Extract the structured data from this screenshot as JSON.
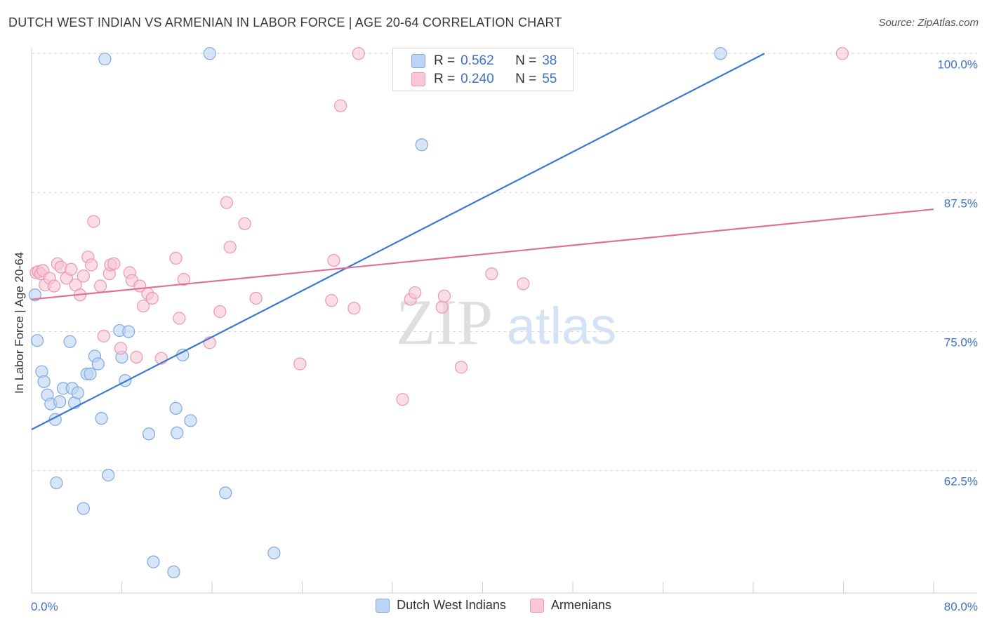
{
  "title": "DUTCH WEST INDIAN VS ARMENIAN IN LABOR FORCE | AGE 20-64 CORRELATION CHART",
  "source": "Source: ZipAtlas.com",
  "watermark": {
    "zip": "ZIP",
    "atlas": "atlas"
  },
  "stats": [
    {
      "r_label": "R =",
      "r": "0.562",
      "n_label": "N =",
      "n": "38",
      "color": "blue"
    },
    {
      "r_label": "R =",
      "r": "0.240",
      "n_label": "N =",
      "n": "55",
      "color": "pink"
    }
  ],
  "legend": [
    "Dutch West Indians",
    "Armenians"
  ],
  "chart_data": {
    "type": "scatter",
    "title": "DUTCH WEST INDIAN VS ARMENIAN IN LABOR FORCE | AGE 20-64 CORRELATION CHART",
    "xlabel": "",
    "ylabel": "In Labor Force | Age 20-64",
    "xlim": [
      0,
      80
    ],
    "ylim": [
      51.5,
      100.9
    ],
    "x_tick_labels": [
      "0.0%",
      "80.0%"
    ],
    "y_ticks": [
      62.5,
      75.0,
      87.5,
      100.0
    ],
    "y_tick_labels": [
      "62.5%",
      "75.0%",
      "87.5%",
      "100.0%"
    ],
    "grid": true,
    "colors": {
      "blue": "#3a78d4",
      "blue_fill": "#bcd4f5",
      "pink": "#e0709a",
      "pink_fill": "#f9c7d6",
      "grid": "#d8d8d8",
      "axis_text": "#3e73c8"
    },
    "series": [
      {
        "name": "Dutch West Indians",
        "color": "#3a78d4",
        "trend": {
          "x": [
            0,
            65.0
          ],
          "y": [
            66.2,
            100.0
          ]
        },
        "points": [
          [
            0.3,
            78.3
          ],
          [
            0.5,
            74.2
          ],
          [
            0.9,
            71.4
          ],
          [
            1.1,
            70.5
          ],
          [
            1.4,
            69.3
          ],
          [
            1.7,
            68.5
          ],
          [
            2.1,
            67.1
          ],
          [
            2.5,
            68.7
          ],
          [
            2.8,
            69.9
          ],
          [
            3.4,
            74.1
          ],
          [
            3.6,
            69.9
          ],
          [
            3.8,
            68.6
          ],
          [
            4.1,
            69.5
          ],
          [
            4.9,
            71.2
          ],
          [
            5.2,
            71.2
          ],
          [
            5.6,
            72.8
          ],
          [
            5.9,
            72.1
          ],
          [
            6.2,
            67.2
          ],
          [
            6.8,
            62.1
          ],
          [
            7.8,
            75.1
          ],
          [
            8.0,
            72.7
          ],
          [
            8.3,
            70.6
          ],
          [
            8.6,
            75.0
          ],
          [
            10.4,
            65.8
          ],
          [
            10.8,
            54.3
          ],
          [
            12.6,
            53.4
          ],
          [
            12.8,
            68.1
          ],
          [
            12.9,
            65.9
          ],
          [
            13.4,
            72.9
          ],
          [
            14.1,
            67.0
          ],
          [
            15.8,
            100.0
          ],
          [
            17.2,
            60.5
          ],
          [
            21.5,
            55.1
          ],
          [
            34.6,
            91.8
          ],
          [
            61.1,
            100.0
          ],
          [
            2.2,
            61.4
          ],
          [
            4.6,
            59.1
          ],
          [
            6.5,
            99.5
          ]
        ]
      },
      {
        "name": "Armenians",
        "color": "#e0709a",
        "trend": {
          "x": [
            0,
            80.0
          ],
          "y": [
            77.9,
            86.0
          ]
        },
        "points": [
          [
            0.4,
            80.3
          ],
          [
            0.6,
            80.4
          ],
          [
            0.8,
            80.2
          ],
          [
            1.0,
            80.5
          ],
          [
            1.2,
            79.2
          ],
          [
            1.6,
            79.8
          ],
          [
            2.0,
            79.1
          ],
          [
            2.3,
            81.1
          ],
          [
            2.6,
            80.8
          ],
          [
            3.1,
            79.8
          ],
          [
            3.5,
            80.6
          ],
          [
            3.9,
            79.2
          ],
          [
            4.3,
            78.3
          ],
          [
            4.6,
            80.0
          ],
          [
            5.0,
            81.7
          ],
          [
            5.3,
            81.0
          ],
          [
            5.5,
            84.9
          ],
          [
            6.1,
            79.1
          ],
          [
            6.4,
            74.6
          ],
          [
            6.9,
            80.2
          ],
          [
            7.0,
            81.0
          ],
          [
            7.3,
            81.1
          ],
          [
            7.9,
            73.5
          ],
          [
            8.7,
            80.3
          ],
          [
            8.9,
            79.6
          ],
          [
            9.3,
            72.7
          ],
          [
            9.6,
            79.1
          ],
          [
            9.9,
            77.3
          ],
          [
            10.3,
            78.4
          ],
          [
            10.7,
            78.0
          ],
          [
            11.5,
            72.6
          ],
          [
            12.8,
            81.6
          ],
          [
            13.1,
            76.2
          ],
          [
            13.5,
            79.7
          ],
          [
            15.8,
            74.0
          ],
          [
            16.7,
            76.8
          ],
          [
            17.3,
            86.6
          ],
          [
            17.6,
            82.6
          ],
          [
            18.9,
            84.7
          ],
          [
            19.9,
            78.0
          ],
          [
            23.8,
            72.1
          ],
          [
            26.6,
            77.8
          ],
          [
            26.8,
            81.4
          ],
          [
            27.4,
            95.3
          ],
          [
            28.6,
            77.1
          ],
          [
            29.0,
            100.0
          ],
          [
            32.9,
            68.9
          ],
          [
            33.6,
            77.9
          ],
          [
            34.0,
            78.5
          ],
          [
            36.4,
            77.2
          ],
          [
            36.6,
            78.2
          ],
          [
            38.1,
            71.8
          ],
          [
            40.8,
            80.2
          ],
          [
            43.6,
            79.3
          ],
          [
            71.9,
            100.0
          ]
        ]
      }
    ]
  }
}
